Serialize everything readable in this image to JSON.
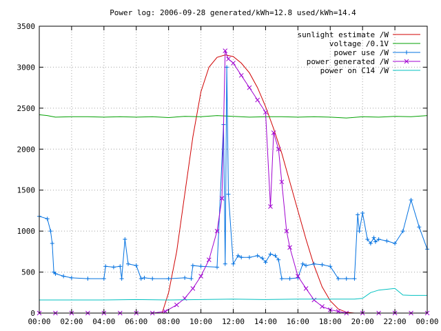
{
  "chart_data": {
    "type": "line",
    "title": "Power log: 2006-09-28 generated/kWh=12.8 used/kWh=14.4",
    "xlabel": "",
    "ylabel": "",
    "xlim": [
      0,
      24
    ],
    "ylim": [
      0,
      3500
    ],
    "x_ticks": [
      0,
      2,
      4,
      6,
      8,
      10,
      12,
      14,
      16,
      18,
      20,
      22,
      24
    ],
    "x_tick_labels": [
      "00:00",
      "02:00",
      "04:00",
      "06:00",
      "08:00",
      "10:00",
      "12:00",
      "14:00",
      "16:00",
      "18:00",
      "20:00",
      "22:00",
      "00:00"
    ],
    "y_ticks": [
      0,
      500,
      1000,
      1500,
      2000,
      2500,
      3000,
      3500
    ],
    "y_tick_labels": [
      "0",
      "500",
      "1000",
      "1500",
      "2000",
      "2500",
      "3000",
      "3500"
    ],
    "grid": true,
    "legend_position": "top-right",
    "series": [
      {
        "name": "sunlight estimate /W",
        "color": "#d00000",
        "marker": "none",
        "x": [
          7.6,
          8.0,
          8.5,
          9.0,
          9.5,
          10.0,
          10.5,
          11.0,
          11.5,
          12.0,
          12.5,
          13.0,
          13.5,
          14.0,
          14.5,
          15.0,
          15.5,
          16.0,
          16.5,
          17.0,
          17.5,
          18.0,
          18.5,
          19.0,
          19.5
        ],
        "y": [
          0,
          250,
          750,
          1450,
          2150,
          2700,
          3000,
          3120,
          3150,
          3130,
          3050,
          2930,
          2750,
          2520,
          2250,
          1950,
          1600,
          1250,
          900,
          580,
          320,
          150,
          50,
          10,
          0
        ]
      },
      {
        "name": "voltage /0.1V",
        "color": "#00a000",
        "marker": "none",
        "x": [
          0,
          0.5,
          1.0,
          2,
          3,
          4,
          5,
          6,
          7,
          8,
          9,
          10,
          11,
          12,
          13,
          14,
          15,
          16,
          17,
          18,
          19,
          20,
          21,
          22,
          23,
          24
        ],
        "y": [
          2420,
          2410,
          2390,
          2395,
          2395,
          2390,
          2395,
          2390,
          2395,
          2385,
          2400,
          2395,
          2410,
          2400,
          2390,
          2395,
          2395,
          2390,
          2395,
          2390,
          2380,
          2395,
          2390,
          2400,
          2395,
          2410
        ]
      },
      {
        "name": "power use /W",
        "color": "#0070e0",
        "marker": "plus",
        "x": [
          0,
          0.5,
          0.7,
          0.8,
          0.9,
          1.0,
          1.5,
          2.0,
          3.0,
          4.0,
          4.1,
          4.6,
          5.0,
          5.1,
          5.3,
          5.5,
          6.0,
          6.3,
          6.5,
          7.0,
          8.0,
          9.0,
          9.4,
          9.5,
          10.0,
          11.0,
          11.4,
          11.5,
          11.6,
          11.7,
          12.0,
          12.3,
          12.5,
          13.0,
          13.5,
          13.8,
          14.0,
          14.3,
          14.6,
          14.8,
          15.0,
          15.5,
          16.0,
          16.3,
          16.5,
          17.0,
          17.5,
          18.0,
          18.5,
          19.0,
          19.5,
          19.7,
          19.8,
          20.0,
          20.3,
          20.5,
          20.7,
          20.8,
          21.0,
          21.5,
          22.0,
          22.5,
          23.0,
          23.5,
          24.0
        ],
        "y": [
          1180,
          1150,
          1000,
          850,
          500,
          480,
          450,
          430,
          420,
          420,
          570,
          560,
          570,
          420,
          900,
          600,
          580,
          420,
          430,
          420,
          420,
          430,
          420,
          580,
          570,
          560,
          2300,
          600,
          3000,
          1450,
          600,
          700,
          680,
          680,
          700,
          670,
          620,
          720,
          700,
          650,
          420,
          420,
          430,
          600,
          580,
          600,
          590,
          570,
          420,
          420,
          420,
          1200,
          1000,
          1220,
          900,
          850,
          920,
          870,
          900,
          880,
          850,
          1000,
          1380,
          1050,
          780
        ]
      },
      {
        "name": "power generated /W",
        "color": "#a000d0",
        "marker": "cross",
        "x": [
          0,
          1,
          2,
          3,
          4,
          5,
          6,
          7,
          7.8,
          8.5,
          9.0,
          9.5,
          10.0,
          10.5,
          11.0,
          11.3,
          11.5,
          11.7,
          12.0,
          12.5,
          13.0,
          13.5,
          14.0,
          14.3,
          14.5,
          14.8,
          15.0,
          15.3,
          15.5,
          16.0,
          16.5,
          17.0,
          17.5,
          18.0,
          18.5,
          19.0,
          20,
          21,
          22,
          23,
          24
        ],
        "y": [
          0,
          0,
          0,
          0,
          0,
          0,
          0,
          0,
          20,
          100,
          180,
          300,
          450,
          650,
          1000,
          1400,
          3200,
          3100,
          3050,
          2900,
          2750,
          2600,
          2450,
          1300,
          2200,
          2000,
          1600,
          1000,
          800,
          450,
          300,
          160,
          80,
          40,
          20,
          0,
          0,
          0,
          0,
          0,
          0
        ]
      },
      {
        "name": "power on C14 /W",
        "color": "#00c0c0",
        "marker": "none",
        "x": [
          0,
          2,
          4,
          6,
          8,
          10,
          12,
          14,
          16,
          18,
          19.5,
          20.0,
          20.5,
          21.0,
          21.5,
          22.0,
          22.5,
          23.0,
          24.0
        ],
        "y": [
          160,
          160,
          160,
          165,
          160,
          165,
          170,
          165,
          170,
          170,
          170,
          180,
          250,
          280,
          290,
          300,
          220,
          215,
          215
        ]
      }
    ]
  }
}
